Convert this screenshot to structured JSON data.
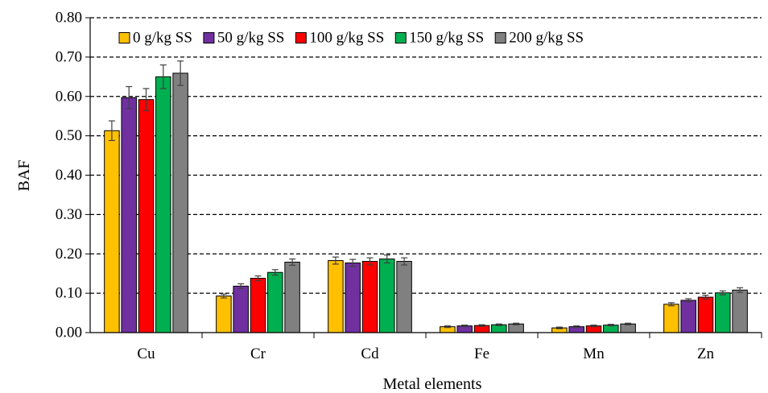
{
  "chart_data": {
    "type": "bar",
    "xlabel": "Metal elements",
    "ylabel": "BAF",
    "ylim": [
      0,
      0.8
    ],
    "yticks": [
      "0.00",
      "0.10",
      "0.20",
      "0.30",
      "0.40",
      "0.50",
      "0.60",
      "0.70",
      "0.80"
    ],
    "ytick_values": [
      0,
      0.1,
      0.2,
      0.3,
      0.4,
      0.5,
      0.6,
      0.7,
      0.8
    ],
    "grid": "horizontal-dashed",
    "legend_position": "top",
    "categories": [
      "Cu",
      "Cr",
      "Cd",
      "Fe",
      "Mn",
      "Zn"
    ],
    "series": [
      {
        "name": "0 g/kg SS",
        "color": "#FFC000",
        "values": [
          0.513,
          0.093,
          0.183,
          0.015,
          0.012,
          0.072
        ],
        "errors": [
          0.025,
          0.005,
          0.009,
          0.002,
          0.002,
          0.004
        ]
      },
      {
        "name": "50 g/kg SS",
        "color": "#7030A0",
        "values": [
          0.597,
          0.118,
          0.177,
          0.017,
          0.015,
          0.082
        ],
        "errors": [
          0.028,
          0.006,
          0.009,
          0.002,
          0.002,
          0.004
        ]
      },
      {
        "name": "100 g/kg SS",
        "color": "#FF0000",
        "values": [
          0.592,
          0.138,
          0.181,
          0.018,
          0.017,
          0.09
        ],
        "errors": [
          0.028,
          0.006,
          0.009,
          0.002,
          0.002,
          0.005
        ]
      },
      {
        "name": "150 g/kg SS",
        "color": "#00B050",
        "values": [
          0.65,
          0.153,
          0.187,
          0.02,
          0.019,
          0.101
        ],
        "errors": [
          0.03,
          0.007,
          0.01,
          0.002,
          0.002,
          0.005
        ]
      },
      {
        "name": "200 g/kg SS",
        "color": "#808080",
        "values": [
          0.659,
          0.179,
          0.181,
          0.022,
          0.022,
          0.108
        ],
        "errors": [
          0.031,
          0.008,
          0.009,
          0.002,
          0.002,
          0.006
        ]
      }
    ]
  }
}
